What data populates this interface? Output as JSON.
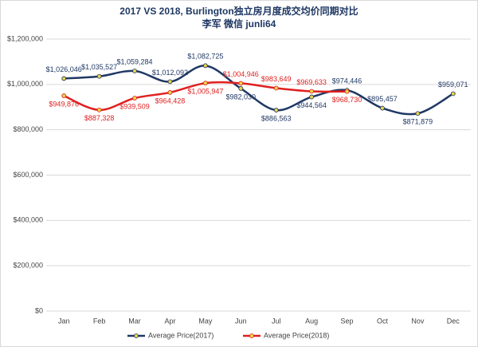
{
  "chart_data": {
    "type": "line",
    "title": "2017 VS 2018, Burlington独立房月度成交均价同期对比",
    "subtitle": "李军  微信  junli64",
    "categories": [
      "Jan",
      "Feb",
      "Mar",
      "Apr",
      "May",
      "Jun",
      "Jul",
      "Aug",
      "Sep",
      "Oct",
      "Nov",
      "Dec"
    ],
    "series": [
      {
        "name": "Average Price(2017)",
        "color": "#1f3864",
        "values": [
          1026046,
          1035527,
          1059284,
          1012092,
          1082725,
          982030,
          886563,
          944564,
          974446,
          895457,
          871879,
          959071
        ],
        "value_labels": [
          "$1,026,046",
          "$1,035,527",
          "$1,059,284",
          "$1,012,092",
          "$1,082,725",
          "$982,030",
          "$886,563",
          "$944,564",
          "$974,446",
          "$895,457",
          "$871,879",
          "$959,071"
        ]
      },
      {
        "name": "Average Price(2018)",
        "color": "#e02020",
        "values": [
          949876,
          887328,
          939509,
          964428,
          1005947,
          1004946,
          983649,
          969633,
          968730,
          null,
          null,
          null
        ],
        "value_labels": [
          "$949,876",
          "$887,328",
          "$939,509",
          "$964,428",
          "$1,005,947",
          "$1,004,946",
          "$983,649",
          "$969,633",
          "$968,730",
          null,
          null,
          null
        ]
      }
    ],
    "ylim": [
      0,
      1200000
    ],
    "yticks": [
      {
        "value": 0,
        "label": "$0"
      },
      {
        "value": 200000,
        "label": "$200,000"
      },
      {
        "value": 400000,
        "label": "$400,000"
      },
      {
        "value": 600000,
        "label": "$600,000"
      },
      {
        "value": 800000,
        "label": "$800,000"
      },
      {
        "value": 1000000,
        "label": "$1,000,000"
      },
      {
        "value": 1200000,
        "label": "$1,200,000"
      }
    ],
    "grid": true,
    "legend": "bottom",
    "marker_color": "#e8d44d"
  }
}
